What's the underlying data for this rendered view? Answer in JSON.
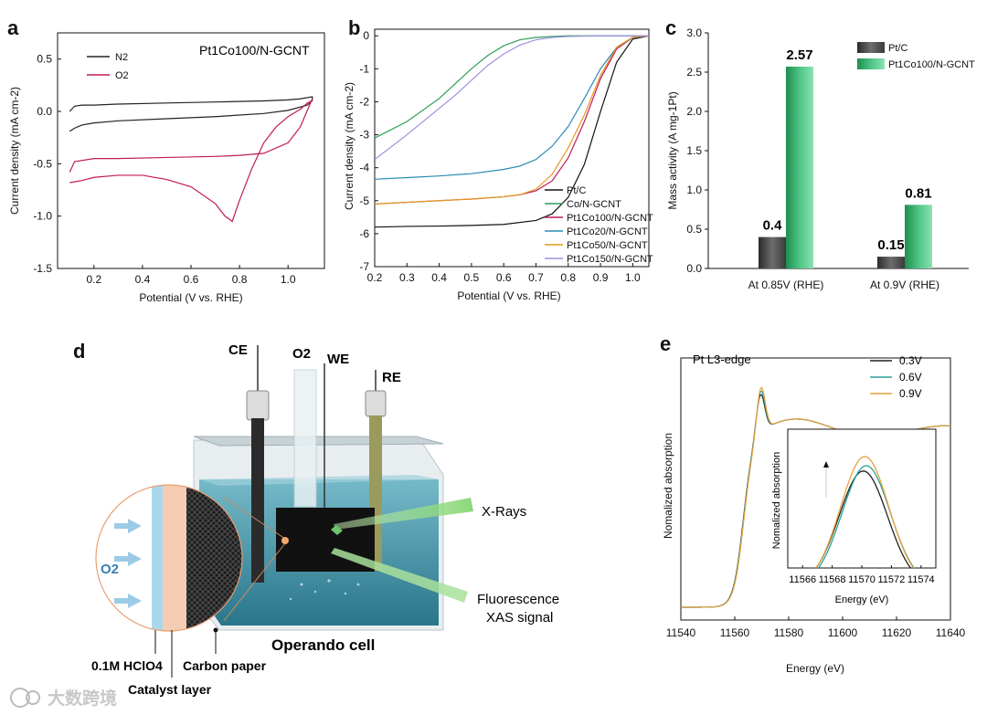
{
  "chart_data": [
    {
      "panel": "a",
      "type": "line",
      "annotation": "Pt1Co100/N-GCNT",
      "xlabel": "Potential (V vs. RHE)",
      "ylabel": "Current density (mA cm-2)",
      "xlim": [
        0.05,
        1.15
      ],
      "ylim": [
        -1.5,
        0.75
      ],
      "xticks": [
        "0.2",
        "0.4",
        "0.6",
        "0.8",
        "1.0"
      ],
      "yticks": [
        "0.5",
        "0.0",
        "-0.5",
        "-1.0",
        "-1.5"
      ],
      "legend_position": "top-left",
      "series": [
        {
          "name": "N2",
          "color": "#222222",
          "x": [
            0.1,
            0.12,
            0.15,
            0.2,
            0.3,
            0.5,
            0.7,
            0.9,
            1.0,
            1.05,
            1.1,
            1.1,
            1.08,
            1.0,
            0.9,
            0.7,
            0.5,
            0.3,
            0.2,
            0.15,
            0.12,
            0.1
          ],
          "y": [
            0.0,
            0.05,
            0.06,
            0.06,
            0.07,
            0.08,
            0.09,
            0.1,
            0.11,
            0.12,
            0.14,
            0.11,
            0.06,
            0.01,
            -0.02,
            -0.05,
            -0.07,
            -0.09,
            -0.11,
            -0.13,
            -0.16,
            -0.19
          ]
        },
        {
          "name": "O2",
          "color": "#c2185b",
          "x": [
            0.1,
            0.12,
            0.2,
            0.3,
            0.5,
            0.7,
            0.8,
            0.9,
            1.0,
            1.05,
            1.1,
            1.1,
            1.08,
            1.05,
            1.0,
            0.95,
            0.9,
            0.85,
            0.8,
            0.77,
            0.74,
            0.7,
            0.6,
            0.5,
            0.4,
            0.3,
            0.2,
            0.15,
            0.1
          ],
          "y": [
            -0.58,
            -0.48,
            -0.45,
            -0.45,
            -0.44,
            -0.43,
            -0.42,
            -0.4,
            -0.3,
            -0.15,
            0.12,
            0.1,
            0.08,
            0.02,
            -0.05,
            -0.15,
            -0.3,
            -0.55,
            -0.85,
            -1.05,
            -1.0,
            -0.88,
            -0.72,
            -0.65,
            -0.61,
            -0.61,
            -0.63,
            -0.66,
            -0.68
          ]
        }
      ]
    },
    {
      "panel": "b",
      "type": "line",
      "xlabel": "Potential (V vs. RHE)",
      "ylabel": "Current density (mA cm-2)",
      "xlim": [
        0.2,
        1.05
      ],
      "ylim": [
        -7,
        0.2
      ],
      "xticks": [
        "0.2",
        "0.3",
        "0.4",
        "0.5",
        "0.6",
        "0.7",
        "0.8",
        "0.9",
        "1.0"
      ],
      "yticks": [
        "0",
        "-1",
        "-2",
        "-3",
        "-4",
        "-5",
        "-6",
        "-7"
      ],
      "legend_position": "bottom-right",
      "series": [
        {
          "name": "Pt/C",
          "color": "#111111",
          "x": [
            0.2,
            0.3,
            0.4,
            0.5,
            0.6,
            0.7,
            0.75,
            0.8,
            0.85,
            0.9,
            0.95,
            1.0,
            1.05
          ],
          "y": [
            -5.8,
            -5.78,
            -5.77,
            -5.75,
            -5.72,
            -5.6,
            -5.4,
            -4.9,
            -3.9,
            -2.3,
            -0.8,
            -0.1,
            0.0
          ]
        },
        {
          "name": "Co/N-GCNT",
          "color": "#2e9e57",
          "x": [
            0.2,
            0.3,
            0.4,
            0.45,
            0.5,
            0.55,
            0.6,
            0.65,
            0.7,
            0.75,
            0.8,
            0.9,
            1.0,
            1.05
          ],
          "y": [
            -3.1,
            -2.6,
            -1.9,
            -1.45,
            -1.0,
            -0.6,
            -0.3,
            -0.12,
            -0.05,
            -0.02,
            0.0,
            0.0,
            0.0,
            0.0
          ]
        },
        {
          "name": "Pt1Co100/N-GCNT",
          "color": "#c2185b",
          "x": [
            0.2,
            0.3,
            0.4,
            0.5,
            0.6,
            0.65,
            0.7,
            0.75,
            0.8,
            0.85,
            0.9,
            0.95,
            1.0,
            1.05
          ],
          "y": [
            -5.1,
            -5.05,
            -5.0,
            -4.95,
            -4.88,
            -4.82,
            -4.7,
            -4.4,
            -3.7,
            -2.6,
            -1.3,
            -0.4,
            -0.05,
            0.0
          ]
        },
        {
          "name": "Pt1Co20/N-GCNT",
          "color": "#2a8bb5",
          "x": [
            0.2,
            0.3,
            0.4,
            0.5,
            0.6,
            0.65,
            0.7,
            0.75,
            0.8,
            0.85,
            0.9,
            0.95,
            1.0,
            1.05
          ],
          "y": [
            -4.35,
            -4.3,
            -4.25,
            -4.18,
            -4.05,
            -3.95,
            -3.75,
            -3.35,
            -2.75,
            -1.9,
            -1.0,
            -0.35,
            -0.05,
            0.0
          ]
        },
        {
          "name": "Pt1Co50/N-GCNT",
          "color": "#e59a1c",
          "x": [
            0.2,
            0.3,
            0.4,
            0.5,
            0.6,
            0.65,
            0.7,
            0.75,
            0.8,
            0.85,
            0.9,
            0.95,
            1.0,
            1.05
          ],
          "y": [
            -5.1,
            -5.05,
            -5.0,
            -4.95,
            -4.88,
            -4.82,
            -4.65,
            -4.2,
            -3.4,
            -2.4,
            -1.2,
            -0.35,
            -0.04,
            0.0
          ]
        },
        {
          "name": "Pt1Co150/N-GCNT",
          "color": "#9f8fe0",
          "x": [
            0.2,
            0.3,
            0.4,
            0.45,
            0.5,
            0.55,
            0.6,
            0.65,
            0.7,
            0.75,
            0.8,
            0.9,
            1.0,
            1.05
          ],
          "y": [
            -3.75,
            -3.0,
            -2.2,
            -1.8,
            -1.35,
            -0.9,
            -0.55,
            -0.28,
            -0.12,
            -0.05,
            -0.02,
            0.0,
            0.0,
            0.0
          ]
        }
      ]
    },
    {
      "panel": "c",
      "type": "bar",
      "ylabel": "Mass activity (A mg-1Pt)",
      "ylim": [
        0,
        3.0
      ],
      "yticks": [
        "0.0",
        "0.5",
        "1.0",
        "1.5",
        "2.0",
        "2.5",
        "3.0"
      ],
      "categories": [
        "At  0.85V (RHE)",
        "At  0.9V (RHE)"
      ],
      "legend_position": "top-right",
      "series": [
        {
          "name": "Pt/C",
          "color": "#444444",
          "values": [
            0.4,
            0.15
          ],
          "labels": [
            "0.4",
            "0.15"
          ]
        },
        {
          "name": "Pt1Co100/N-GCNT",
          "color": "#1f9a5a",
          "values": [
            2.57,
            0.81
          ],
          "labels": [
            "2.57",
            "0.81"
          ]
        }
      ]
    },
    {
      "panel": "e",
      "type": "line",
      "annotation": "Pt L3-edge",
      "xlabel": "Energy (eV)",
      "ylabel": "Nomalized absorption",
      "xlim": [
        11540,
        11640
      ],
      "xticks": [
        "11540",
        "11560",
        "11580",
        "11600",
        "11620",
        "11640"
      ],
      "legend_position": "top-right",
      "series": [
        {
          "name": "0.3V",
          "color": "#222222"
        },
        {
          "name": "0.6V",
          "color": "#2aa198"
        },
        {
          "name": "0.9V",
          "color": "#e6a23c"
        }
      ],
      "inset": {
        "xlabel": "Energy (eV)",
        "ylabel": "Nomalized absorption",
        "xticks": [
          "11566",
          "11568",
          "11570",
          "11572",
          "11574"
        ]
      }
    }
  ],
  "panel_labels": {
    "a": "a",
    "b": "b",
    "c": "c",
    "d": "d",
    "e": "e"
  },
  "diagram": {
    "electrodes": {
      "ce": "CE",
      "o2": "O2",
      "we": "WE",
      "re": "RE"
    },
    "xrays": "X-Rays",
    "fluorescence": "Fluorescence",
    "xas_signal": "XAS signal",
    "cell_name": "Operando cell",
    "o2_inlet": "O2",
    "electrolyte": "0.1M HClO4",
    "carbon_paper": "Carbon paper",
    "catalyst_layer": "Catalyst layer"
  },
  "watermark": "大数跨境"
}
